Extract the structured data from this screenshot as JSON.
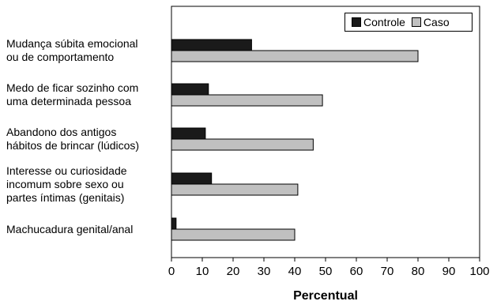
{
  "chart_data": {
    "type": "bar",
    "orientation": "horizontal",
    "categories": [
      [
        "Mudança súbita emocional",
        "ou de comportamento"
      ],
      [
        "Medo de ficar sozinho com",
        "uma determinada pessoa"
      ],
      [
        "Abandono dos antigos",
        "hábitos de brincar (lúdicos)"
      ],
      [
        "Interesse ou curiosidade",
        "incomum sobre sexo ou",
        "partes íntimas (genitais)"
      ],
      [
        "Machucadura genital/anal"
      ]
    ],
    "series": [
      {
        "name": "Controle",
        "color": "#1a1a1a",
        "values": [
          26,
          12,
          11,
          13,
          1.5
        ]
      },
      {
        "name": "Caso",
        "color": "#c0c0c0",
        "values": [
          80,
          49,
          46,
          41,
          40
        ]
      }
    ],
    "xlabel": "Percentual",
    "xlim": [
      0,
      100
    ],
    "xticks": [
      0,
      10,
      20,
      30,
      40,
      50,
      60,
      70,
      80,
      90,
      100
    ],
    "legend_position": "top-right",
    "grid": false
  }
}
